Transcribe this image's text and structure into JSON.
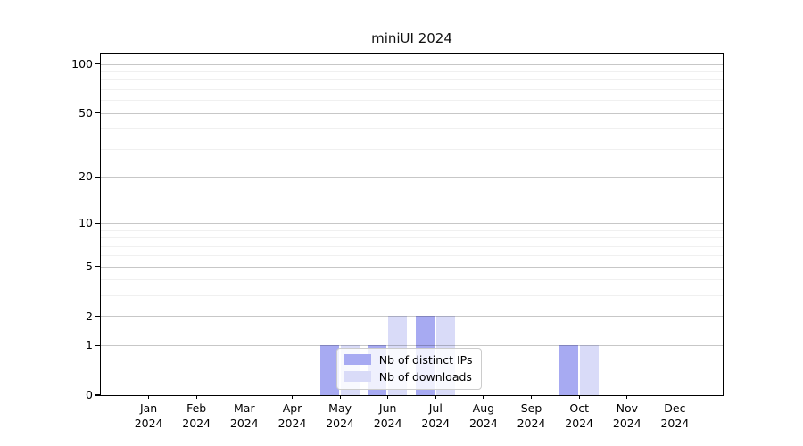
{
  "chart_data": {
    "type": "bar",
    "title": "miniUI 2024",
    "categories": [
      "Jan",
      "Feb",
      "Mar",
      "Apr",
      "May",
      "Jun",
      "Jul",
      "Aug",
      "Sep",
      "Oct",
      "Nov",
      "Dec"
    ],
    "tick_year": "2024",
    "series": [
      {
        "name": "Nb of distinct IPs",
        "color": "#a7aaf2",
        "values": [
          0,
          0,
          0,
          0,
          1,
          1,
          2,
          0,
          0,
          1,
          0,
          0
        ]
      },
      {
        "name": "Nb of downloads",
        "color": "#d9dbf8",
        "values": [
          0,
          0,
          0,
          0,
          1,
          2,
          2,
          0,
          0,
          1,
          0,
          0
        ]
      }
    ],
    "xlabel": "",
    "ylabel": "",
    "yscale": "log1p",
    "ylim": [
      0,
      115
    ],
    "yticks": [
      0,
      1,
      2,
      5,
      10,
      20,
      50,
      100
    ],
    "minor_yticks": [
      3,
      4,
      6,
      7,
      8,
      9,
      30,
      40,
      60,
      70,
      80,
      90
    ],
    "grid": true,
    "legend_position": "lower center"
  }
}
